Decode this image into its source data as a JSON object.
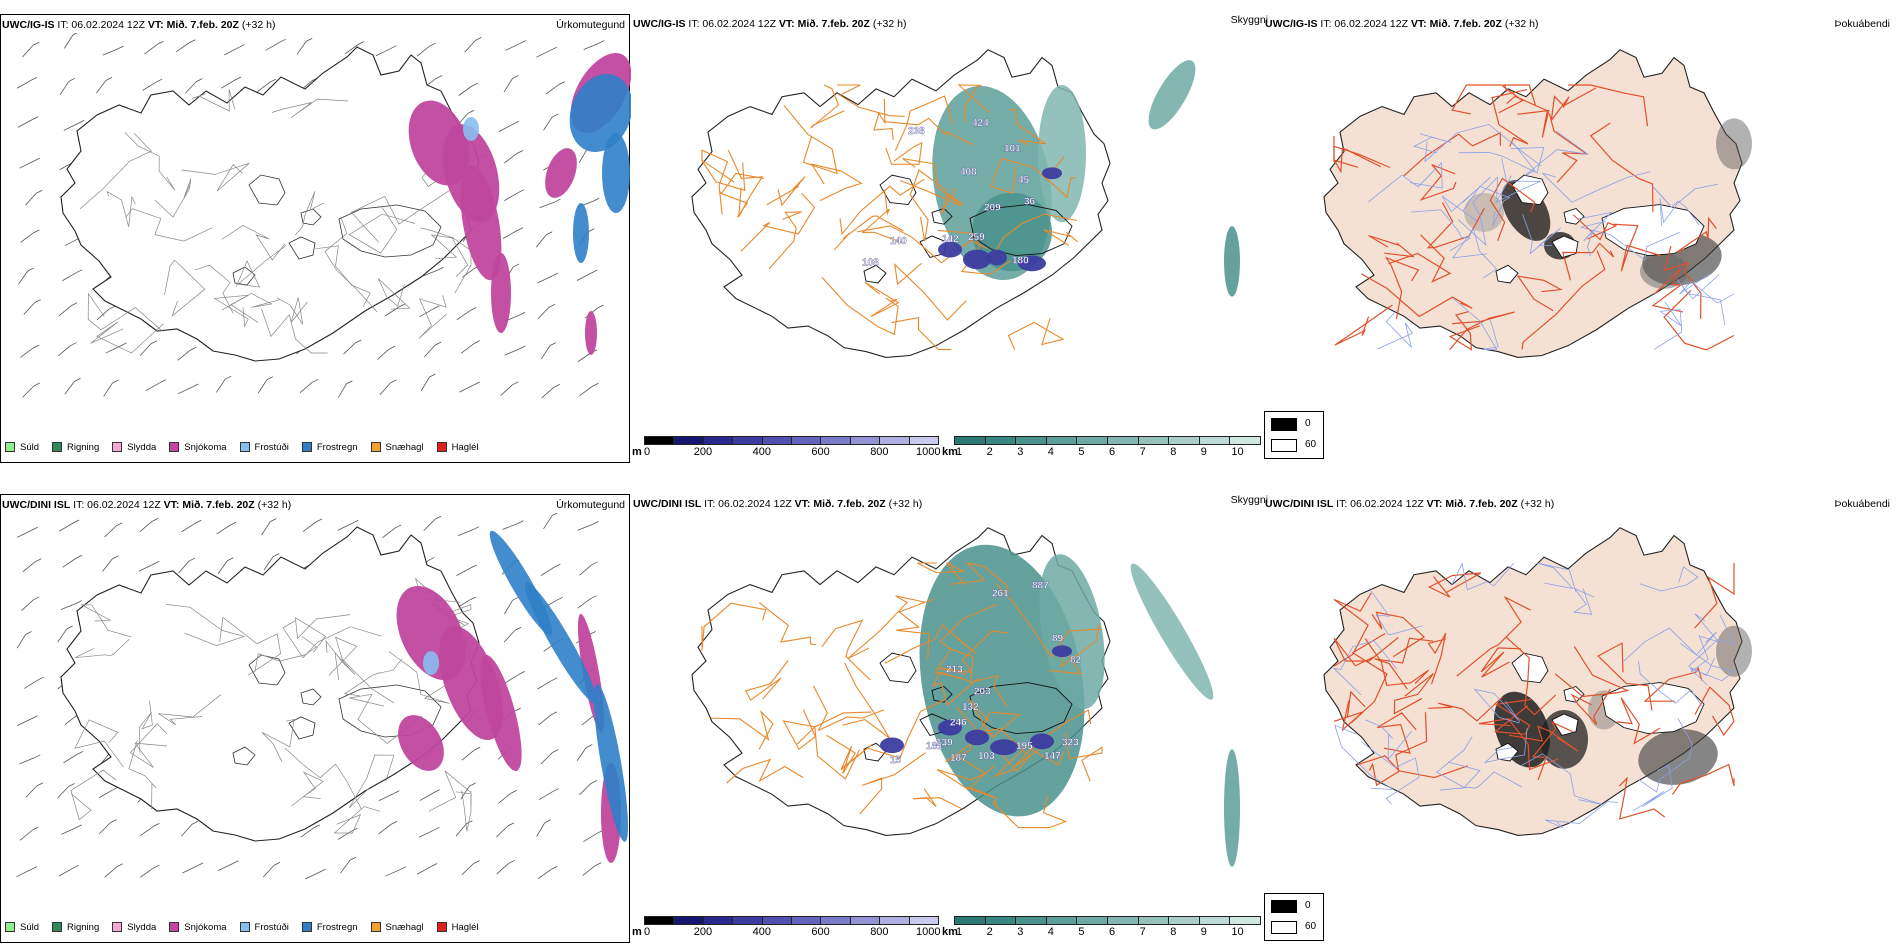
{
  "panels": [
    {
      "header": {
        "model": "UWC/IG-IS",
        "it": "IT: 06.02.2024 12Z",
        "vt_label": "VT:",
        "vt_value": "Mið. 7.feb. 20Z",
        "lead": "(+32 h)"
      },
      "title": "Úrkomutegund"
    },
    {
      "header": {
        "model": "UWC/IG-IS",
        "it": "IT: 06.02.2024 12Z",
        "vt_label": "VT:",
        "vt_value": "Mið. 7.feb. 20Z",
        "lead": "(+32 h)"
      },
      "title": "Skyggni"
    },
    {
      "header": {
        "model": "UWC/IG-IS",
        "it": "IT: 06.02.2024 12Z",
        "vt_label": "VT:",
        "vt_value": "Mið. 7.feb. 20Z",
        "lead": "(+32 h)"
      },
      "title": "Þokuábendi"
    },
    {
      "header": {
        "model": "UWC/DINI ISL",
        "it": "IT: 06.02.2024 12Z",
        "vt_label": "VT:",
        "vt_value": "Mið. 7.feb. 20Z",
        "lead": "(+32 h)"
      },
      "title": "Úrkomutegund"
    },
    {
      "header": {
        "model": "UWC/DINI ISL",
        "it": "IT: 06.02.2024 12Z",
        "vt_label": "VT:",
        "vt_value": "Mið. 7.feb. 20Z",
        "lead": "(+32 h)"
      },
      "title": "Skyggni"
    },
    {
      "header": {
        "model": "UWC/DINI ISL",
        "it": "IT: 06.02.2024 12Z",
        "vt_label": "VT:",
        "vt_value": "Mið. 7.feb. 20Z",
        "lead": "(+32 h)"
      },
      "title": "Þokuábendi"
    }
  ],
  "precip_legend": [
    {
      "label": "Súld",
      "color": "#90ee90"
    },
    {
      "label": "Rigning",
      "color": "#2e8b57"
    },
    {
      "label": "Slydda",
      "color": "#f4a6d7"
    },
    {
      "label": "Snjókoma",
      "color": "#c0479e"
    },
    {
      "label": "Frostúði",
      "color": "#87bdf0"
    },
    {
      "label": "Frostregn",
      "color": "#2f7fc8"
    },
    {
      "label": "Snæhagl",
      "color": "#f0a030"
    },
    {
      "label": "Haglél",
      "color": "#e02020"
    }
  ],
  "cloud_base_scale": {
    "unit": "m",
    "ticks": [
      "0",
      "200",
      "400",
      "600",
      "800",
      "1000"
    ],
    "colors": [
      "#000000",
      "#16166e",
      "#2a2a8c",
      "#3c3ca0",
      "#5050b0",
      "#6464bc",
      "#7a7ac8",
      "#9494d4",
      "#b0b0e0",
      "#cacaec"
    ]
  },
  "visibility_scale": {
    "unit": "km",
    "ticks": [
      "1",
      "2",
      "3",
      "4",
      "5",
      "6",
      "7",
      "8",
      "9",
      "10"
    ],
    "colors": [
      "#2a7a74",
      "#3a8680",
      "#4a928c",
      "#5c9e98",
      "#6eaaa4",
      "#82b6b0",
      "#96c2bc",
      "#aacec8",
      "#bedad6",
      "#d2e6e2"
    ]
  },
  "fog_key": {
    "values": [
      "0",
      "60"
    ],
    "colors": [
      "#000000",
      "#ffffff"
    ]
  },
  "cloud_base_labels_top": [
    "238",
    "424",
    "101",
    "408",
    "45",
    "36",
    "209",
    "259",
    "142",
    "140",
    "108",
    "180"
  ],
  "cloud_base_labels_bottom": [
    "887",
    "261",
    "89",
    "82",
    "213",
    "203",
    "132",
    "246",
    "139",
    "15",
    "181",
    "187",
    "103",
    "195",
    "147",
    "323"
  ]
}
